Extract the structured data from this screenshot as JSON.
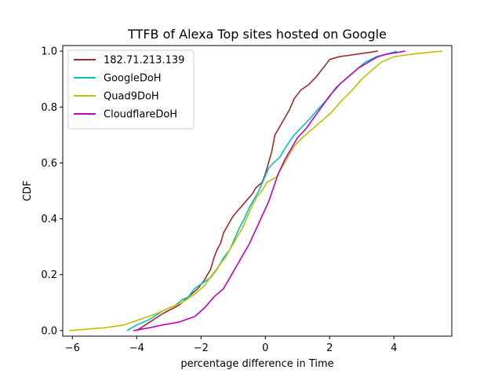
{
  "chart_data": {
    "type": "line",
    "title": "TTFB of Alexa Top sites hosted on Google",
    "xlabel": "percentage difference in Time",
    "ylabel": "CDF",
    "xlim": [
      -6.3,
      5.8
    ],
    "ylim": [
      -0.02,
      1.02
    ],
    "xticks": [
      -6,
      -4,
      -2,
      0,
      2,
      4
    ],
    "xtick_labels": [
      "−6",
      "−4",
      "−2",
      "0",
      "2",
      "4"
    ],
    "yticks": [
      0.0,
      0.2,
      0.4,
      0.6,
      0.8,
      1.0
    ],
    "ytick_labels": [
      "0.0",
      "0.2",
      "0.4",
      "0.6",
      "0.8",
      "1.0"
    ],
    "grid": false,
    "legend_position": "top-left",
    "series": [
      {
        "name": "182.71.213.139",
        "color": "#a52a2a",
        "x": [
          -4.0,
          -3.6,
          -3.2,
          -2.7,
          -2.4,
          -2.1,
          -1.9,
          -1.7,
          -1.6,
          -1.5,
          -1.4,
          -1.3,
          -1.15,
          -1.0,
          -0.85,
          -0.7,
          -0.55,
          -0.4,
          -0.3,
          -0.2,
          -0.1,
          0.0,
          0.1,
          0.2,
          0.3,
          0.45,
          0.6,
          0.75,
          0.9,
          1.1,
          1.35,
          1.6,
          1.8,
          2.0,
          2.3,
          2.6,
          2.9,
          3.2,
          3.5
        ],
        "y": [
          0.0,
          0.03,
          0.06,
          0.09,
          0.12,
          0.15,
          0.18,
          0.22,
          0.26,
          0.29,
          0.31,
          0.35,
          0.38,
          0.41,
          0.43,
          0.45,
          0.47,
          0.49,
          0.51,
          0.52,
          0.53,
          0.56,
          0.6,
          0.64,
          0.7,
          0.73,
          0.76,
          0.79,
          0.83,
          0.86,
          0.88,
          0.91,
          0.94,
          0.97,
          0.98,
          0.985,
          0.99,
          0.995,
          1.0
        ]
      },
      {
        "name": "GoogleDoH",
        "color": "#00c0c0",
        "x": [
          -4.3,
          -4.0,
          -3.6,
          -3.2,
          -2.8,
          -2.6,
          -2.4,
          -2.2,
          -1.95,
          -1.7,
          -1.5,
          -1.3,
          -1.1,
          -0.95,
          -0.8,
          -0.65,
          -0.5,
          -0.35,
          -0.2,
          -0.05,
          0.1,
          0.25,
          0.45,
          0.65,
          0.9,
          1.15,
          1.4,
          1.7,
          1.95,
          2.2,
          2.5,
          2.8,
          3.1,
          3.45,
          3.8,
          4.1
        ],
        "y": [
          0.0,
          0.02,
          0.04,
          0.07,
          0.09,
          0.11,
          0.12,
          0.15,
          0.17,
          0.19,
          0.22,
          0.26,
          0.29,
          0.33,
          0.37,
          0.4,
          0.44,
          0.47,
          0.5,
          0.54,
          0.58,
          0.6,
          0.62,
          0.66,
          0.7,
          0.73,
          0.76,
          0.8,
          0.83,
          0.87,
          0.9,
          0.93,
          0.96,
          0.98,
          0.99,
          1.0
        ]
      },
      {
        "name": "Quad9DoH",
        "color": "#bfbf00",
        "x": [
          -6.1,
          -5.0,
          -4.4,
          -3.9,
          -3.4,
          -3.0,
          -2.6,
          -2.2,
          -1.9,
          -1.65,
          -1.45,
          -1.25,
          -1.05,
          -0.85,
          -0.7,
          -0.55,
          -0.4,
          -0.25,
          -0.1,
          0.05,
          0.2,
          0.35,
          0.5,
          0.7,
          0.9,
          1.15,
          1.45,
          1.75,
          2.05,
          2.35,
          2.7,
          3.0,
          3.3,
          3.6,
          4.0,
          4.6,
          5.5
        ],
        "y": [
          0.0,
          0.01,
          0.02,
          0.04,
          0.06,
          0.08,
          0.1,
          0.13,
          0.16,
          0.2,
          0.23,
          0.26,
          0.3,
          0.34,
          0.37,
          0.41,
          0.45,
          0.48,
          0.5,
          0.53,
          0.54,
          0.55,
          0.58,
          0.62,
          0.66,
          0.69,
          0.72,
          0.75,
          0.78,
          0.82,
          0.86,
          0.9,
          0.93,
          0.96,
          0.98,
          0.99,
          1.0
        ]
      },
      {
        "name": "CloudflareDoH",
        "color": "#bf00bf",
        "x": [
          -4.1,
          -3.6,
          -3.2,
          -2.7,
          -2.2,
          -1.9,
          -1.6,
          -1.3,
          -1.1,
          -0.9,
          -0.7,
          -0.5,
          -0.3,
          -0.1,
          0.1,
          0.25,
          0.4,
          0.6,
          0.8,
          1.0,
          1.25,
          1.5,
          1.75,
          2.0,
          2.3,
          2.6,
          2.9,
          3.2,
          3.5,
          3.8,
          4.1,
          4.35
        ],
        "y": [
          0.0,
          0.01,
          0.02,
          0.03,
          0.05,
          0.08,
          0.12,
          0.15,
          0.19,
          0.23,
          0.27,
          0.31,
          0.36,
          0.41,
          0.46,
          0.51,
          0.56,
          0.61,
          0.65,
          0.69,
          0.72,
          0.76,
          0.8,
          0.84,
          0.88,
          0.91,
          0.94,
          0.96,
          0.98,
          0.99,
          0.995,
          1.0
        ]
      }
    ]
  }
}
